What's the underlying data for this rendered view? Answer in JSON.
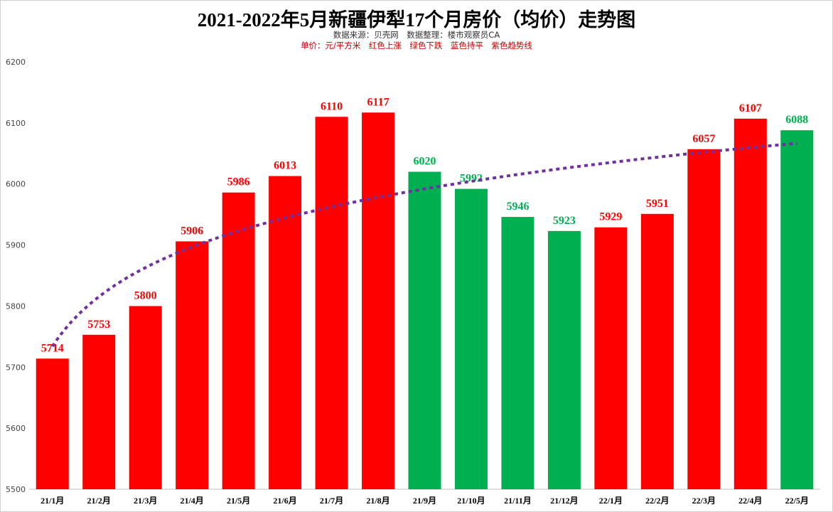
{
  "chart_data": {
    "type": "bar",
    "title": "2021-2022年5月新疆伊犁17个月房价（均价）走势图",
    "subtitle_source": "数据来源：贝壳网　数据整理：楼市观察员CA",
    "subtitle_legend": "单价：元/平方米　红色上涨　绿色下跌　蓝色持平　紫色趋势线",
    "categories": [
      "21/1月",
      "21/2月",
      "21/3月",
      "21/4月",
      "21/5月",
      "21/6月",
      "21/7月",
      "21/8月",
      "21/9月",
      "21/10月",
      "21/11月",
      "21/12月",
      "22/1月",
      "22/2月",
      "22/3月",
      "22/4月",
      "22/5月"
    ],
    "values": [
      5714,
      5753,
      5800,
      5906,
      5986,
      6013,
      6110,
      6117,
      6020,
      5992,
      5946,
      5923,
      5929,
      5951,
      6057,
      6107,
      6088
    ],
    "trend": [
      "up",
      "up",
      "up",
      "up",
      "up",
      "up",
      "up",
      "up",
      "down",
      "down",
      "down",
      "down",
      "up",
      "up",
      "up",
      "up",
      "down"
    ],
    "ylim": [
      5500,
      6200
    ],
    "yticks": [
      5500,
      5600,
      5700,
      5800,
      5900,
      6000,
      6100,
      6200
    ],
    "trendline": {
      "type": "logarithmic",
      "color": "#7030a0"
    },
    "colors": {
      "up": "#ff0000",
      "down": "#00b050",
      "flat": "#0070c0",
      "trend": "#7030a0"
    },
    "xlabel": "",
    "ylabel": ""
  }
}
